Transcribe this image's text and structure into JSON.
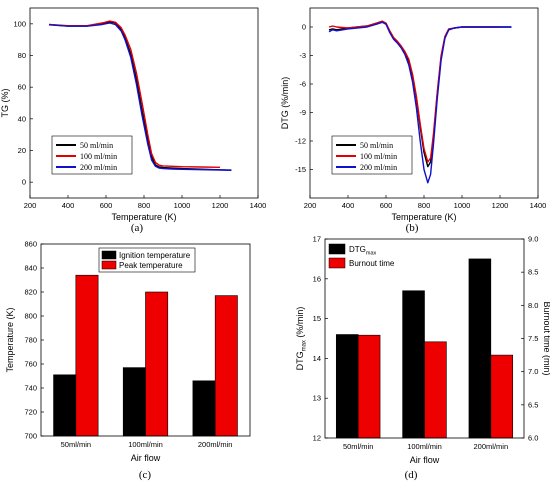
{
  "chart_data": [
    {
      "id": "a",
      "type": "line",
      "panel_label": "(a)",
      "xlabel": "Temperature (K)",
      "ylabel": "TG (%)",
      "xlim": [
        200,
        1400
      ],
      "ylim": [
        -10,
        110
      ],
      "xticks": [
        200,
        400,
        600,
        800,
        1000,
        1200,
        1400
      ],
      "yticks": [
        0,
        20,
        40,
        60,
        80,
        100
      ],
      "legend_position": "lower-left",
      "series": [
        {
          "name": "50 ml/min",
          "color": "#000000",
          "x": [
            300,
            400,
            500,
            580,
            620,
            650,
            680,
            700,
            730,
            760,
            790,
            820,
            840,
            860,
            880,
            900,
            950,
            1000,
            1100,
            1200,
            1260
          ],
          "y": [
            99.5,
            98.6,
            98.6,
            100,
            101.3,
            100.5,
            96.5,
            91.2,
            81,
            65,
            45,
            27,
            16,
            11,
            9.6,
            9.2,
            8.9,
            8.6,
            8.2,
            7.8,
            7.6
          ]
        },
        {
          "name": "100 ml/min",
          "color": "#e00000",
          "x": [
            300,
            400,
            500,
            580,
            620,
            650,
            680,
            700,
            730,
            760,
            790,
            820,
            840,
            860,
            880,
            900,
            950,
            1000,
            1100,
            1200
          ],
          "y": [
            99.6,
            98.8,
            98.8,
            100.5,
            101.8,
            101,
            97.5,
            93,
            84,
            69,
            50,
            30,
            18,
            12.5,
            10.7,
            10.3,
            10,
            9.8,
            9.6,
            9.4
          ]
        },
        {
          "name": "200 ml/min",
          "color": "#1010d0",
          "x": [
            300,
            400,
            500,
            580,
            620,
            650,
            680,
            700,
            730,
            760,
            790,
            820,
            840,
            860,
            880,
            900,
            950,
            1000,
            1100,
            1200,
            1260
          ],
          "y": [
            99.4,
            98.5,
            98.5,
            99.6,
            100.5,
            99.5,
            95.5,
            90,
            79,
            62,
            42,
            24,
            14,
            10,
            8.9,
            8.6,
            8.3,
            8.1,
            7.9,
            7.7,
            7.5
          ]
        }
      ]
    },
    {
      "id": "b",
      "type": "line",
      "panel_label": "(b)",
      "xlabel": "Temperature (K)",
      "ylabel": "DTG (%/min)",
      "xlim": [
        200,
        1400
      ],
      "ylim": [
        -18,
        2
      ],
      "xticks": [
        200,
        400,
        600,
        800,
        1000,
        1200,
        1400
      ],
      "yticks": [
        0,
        -3,
        -6,
        -9,
        -12,
        -15
      ],
      "legend_position": "lower-left",
      "series": [
        {
          "name": "50 ml/min",
          "color": "#000000",
          "x": [
            300,
            320,
            340,
            400,
            500,
            550,
            580,
            600,
            620,
            640,
            660,
            680,
            700,
            720,
            740,
            760,
            780,
            800,
            820,
            835,
            850,
            870,
            890,
            910,
            930,
            960,
            1000,
            1100,
            1200,
            1260
          ],
          "y": [
            -0.3,
            -0.2,
            -0.3,
            -0.1,
            0.1,
            0.4,
            0.6,
            0.4,
            -0.5,
            -1.2,
            -1.6,
            -2.1,
            -2.7,
            -3.6,
            -5.2,
            -7.5,
            -10.5,
            -13.2,
            -14.7,
            -14.2,
            -11.5,
            -7,
            -3.2,
            -1.1,
            -0.3,
            -0.1,
            0,
            0,
            0,
            0
          ]
        },
        {
          "name": "100 ml/min",
          "color": "#e00000",
          "x": [
            300,
            320,
            340,
            400,
            500,
            550,
            580,
            600,
            620,
            640,
            660,
            680,
            700,
            720,
            740,
            760,
            780,
            800,
            820,
            835,
            850,
            870,
            890,
            910,
            930,
            960,
            1000,
            1100,
            1200
          ],
          "y": [
            0,
            0.1,
            0,
            -0.1,
            0.1,
            0.4,
            0.6,
            0.4,
            -0.4,
            -1.1,
            -1.5,
            -2,
            -2.6,
            -3.4,
            -5,
            -7.3,
            -10.2,
            -12.8,
            -14.2,
            -13.8,
            -11.2,
            -6.8,
            -3,
            -1,
            -0.2,
            -0.1,
            0,
            0,
            0
          ]
        },
        {
          "name": "200 ml/min",
          "color": "#1010d0",
          "x": [
            300,
            320,
            340,
            400,
            500,
            550,
            580,
            600,
            620,
            640,
            660,
            680,
            700,
            720,
            740,
            760,
            780,
            800,
            820,
            835,
            850,
            870,
            890,
            910,
            930,
            960,
            1000,
            1100,
            1200,
            1260
          ],
          "y": [
            -0.5,
            -0.3,
            -0.4,
            -0.2,
            0,
            0.3,
            0.5,
            0.3,
            -0.6,
            -1.3,
            -1.7,
            -2.2,
            -2.9,
            -4,
            -5.8,
            -8.5,
            -12,
            -15,
            -16.4,
            -15.5,
            -12.3,
            -7.5,
            -3.5,
            -1.2,
            -0.3,
            -0.1,
            0,
            0,
            0,
            0
          ]
        }
      ]
    },
    {
      "id": "c",
      "type": "bar",
      "panel_label": "(c)",
      "xlabel": "Air flow",
      "ylabel": "Temperature (K)",
      "categories": [
        "50ml/min",
        "100ml/min",
        "200ml/min"
      ],
      "ylim": [
        700,
        860
      ],
      "yticks": [
        700,
        720,
        740,
        760,
        780,
        800,
        820,
        840,
        860
      ],
      "legend_position": "top-left",
      "series": [
        {
          "name": "Ignition temperature",
          "color": "#000000",
          "values": [
            751,
            757,
            746
          ]
        },
        {
          "name": "Peak temperature",
          "color": "#ee0000",
          "values": [
            834,
            820,
            817
          ]
        }
      ]
    },
    {
      "id": "d",
      "type": "bar",
      "panel_label": "(d)",
      "xlabel": "Air flow",
      "ylabel_left_base": "DTG",
      "ylabel_left_sub": "max",
      "ylabel_left_tail": " (%/min)",
      "ylabel_right": "Burnout time (min)",
      "categories": [
        "50ml/min",
        "100ml/min",
        "200ml/min"
      ],
      "ylim": [
        12,
        17
      ],
      "yticks": [
        12,
        13,
        14,
        15,
        16,
        17
      ],
      "ylim_right": [
        6.0,
        9.0
      ],
      "yticks_right": [
        "6.0",
        "6.5",
        "7.0",
        "7.5",
        "8.0",
        "8.5",
        "9.0"
      ],
      "legend_position": "top-left",
      "series": [
        {
          "name_base": "DTG",
          "name_sub": "max",
          "color": "#000000",
          "axis": "left",
          "values": [
            14.6,
            15.7,
            16.5
          ]
        },
        {
          "name_base": "Burnout time",
          "name_sub": "",
          "color": "#ee0000",
          "axis": "right",
          "values": [
            7.55,
            7.45,
            7.25
          ]
        }
      ]
    }
  ]
}
